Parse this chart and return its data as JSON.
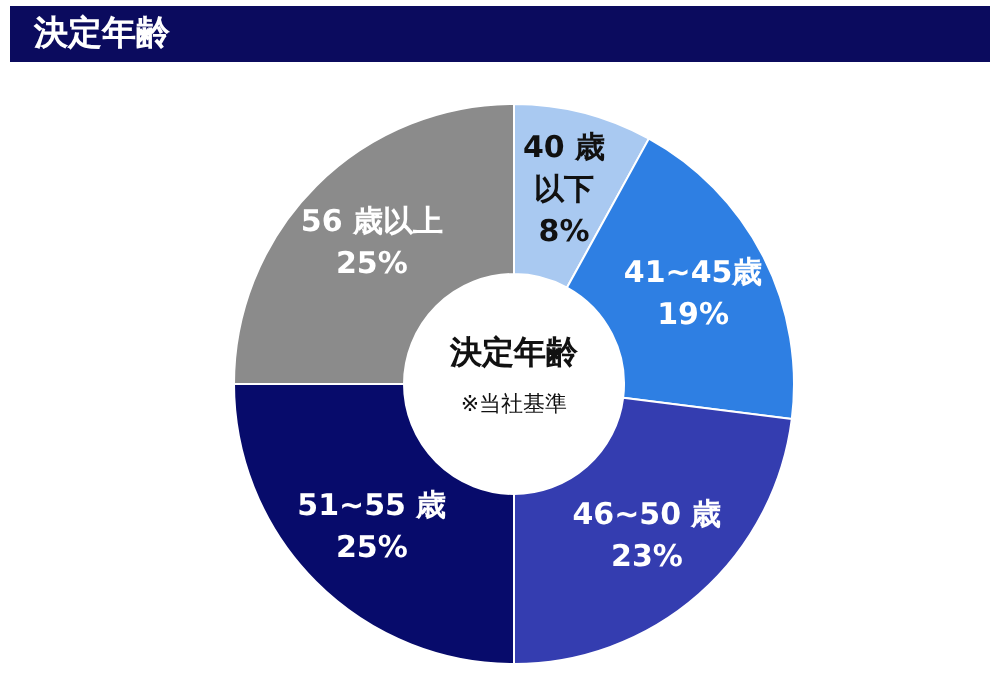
{
  "chart_data": {
    "type": "donut",
    "title": "決定年齢",
    "categories": [
      "40 歳以下",
      "41~45歳",
      "46~50 歳",
      "51~55 歳",
      "56 歳以上"
    ],
    "values": [
      8,
      19,
      23,
      25,
      25
    ],
    "colors": [
      "#a9c9f1",
      "#2e7fe3",
      "#343db0",
      "#070b6b",
      "#8b8b8b"
    ],
    "value_labels": [
      "8%",
      "19%",
      "23%",
      "25%",
      "25%"
    ],
    "legend": false,
    "annotations": [
      "決定年齢",
      "※当社基準"
    ]
  }
}
